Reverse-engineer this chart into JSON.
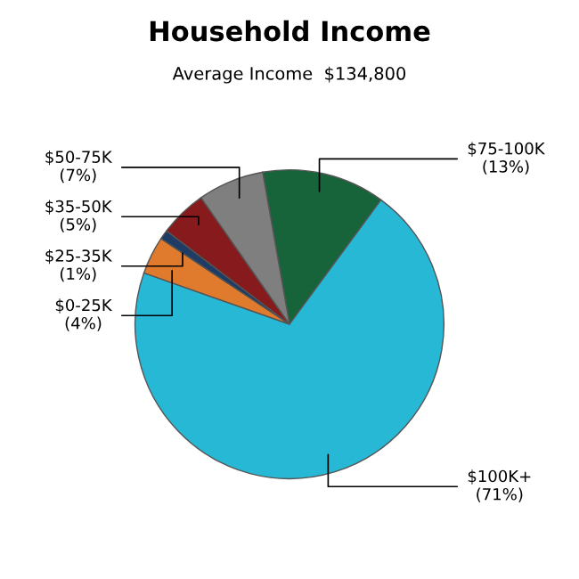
{
  "chart_data": {
    "type": "pie",
    "title": "Household Income",
    "subtitle": "Average Income  $134,800",
    "categories": [
      "$75-100K",
      "$100K+",
      "$0-25K",
      "$25-35K",
      "$35-50K",
      "$50-75K"
    ],
    "values": [
      13,
      71,
      4,
      1,
      5,
      7
    ],
    "value_labels": [
      "(13%)",
      "(71%)",
      "(4%)",
      "(1%)",
      "(5%)",
      "(7%)"
    ],
    "colors": [
      "#17643a",
      "#27b8d6",
      "#e07a2c",
      "#1f3c64",
      "#861a1c",
      "#7f7f7f"
    ]
  }
}
